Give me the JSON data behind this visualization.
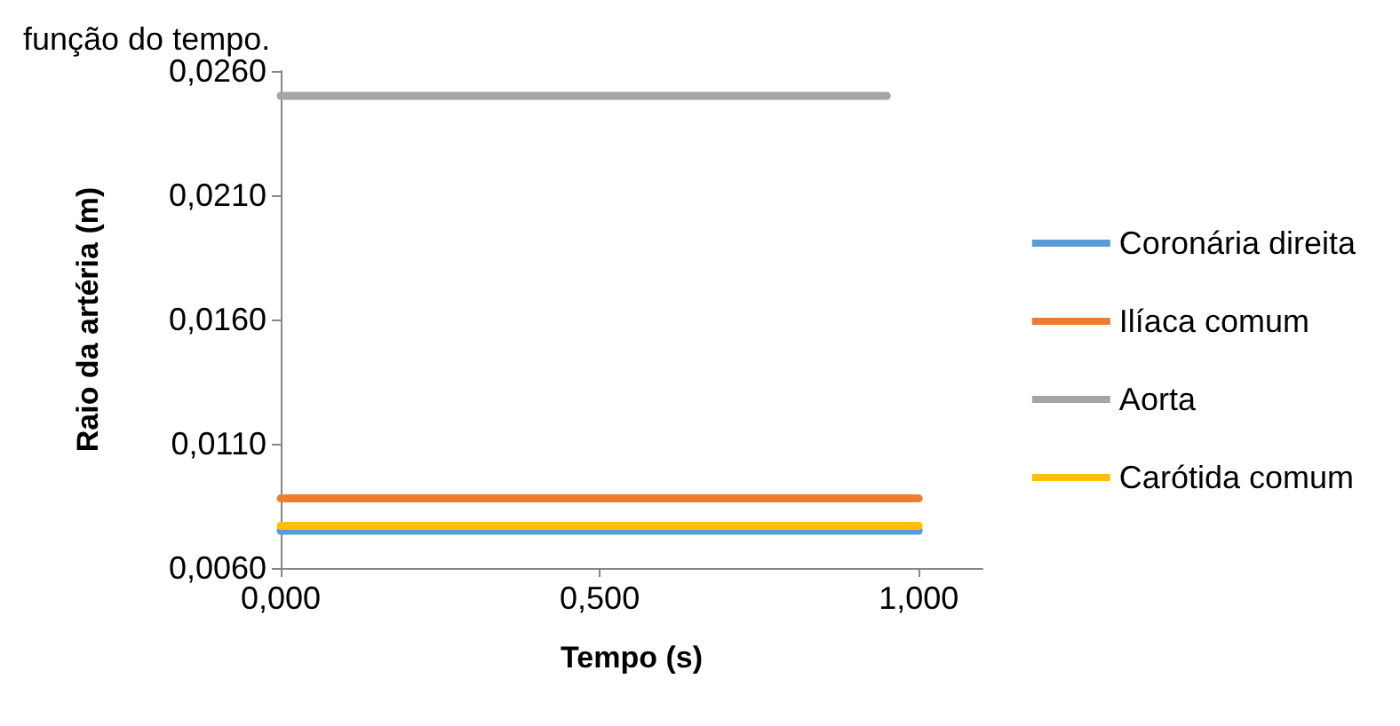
{
  "chart_data": {
    "type": "line",
    "title": "função do tempo.",
    "xlabel": "Tempo (s)",
    "ylabel": "Raio da artéria (m)",
    "xlim": [
      0,
      1.1
    ],
    "xticks": [
      {
        "value": 0,
        "label": "0,000"
      },
      {
        "value": 0.5,
        "label": "0,500"
      },
      {
        "value": 1,
        "label": "1,000"
      }
    ],
    "ylim": [
      0.006,
      0.026
    ],
    "yticks": [
      {
        "value": 0.006,
        "label": "0,0060"
      },
      {
        "value": 0.011,
        "label": "0,0110"
      },
      {
        "value": 0.016,
        "label": "0,0160"
      },
      {
        "value": 0.021,
        "label": "0,0210"
      },
      {
        "value": 0.026,
        "label": "0,0260"
      }
    ],
    "series": [
      {
        "name": "Coronária direita",
        "color": "#5b9bd5",
        "x": [
          0,
          1
        ],
        "values": [
          0.0075,
          0.0075
        ]
      },
      {
        "name": "Ilíaca comum",
        "color": "#ed7d31",
        "x": [
          0,
          1
        ],
        "values": [
          0.0088,
          0.0088
        ]
      },
      {
        "name": "Aorta",
        "color": "#a5a5a5",
        "x": [
          0,
          0.95
        ],
        "values": [
          0.025,
          0.025
        ]
      },
      {
        "name": "Carótida comum",
        "color": "#ffc000",
        "x": [
          0,
          1
        ],
        "values": [
          0.0077,
          0.0077
        ]
      }
    ],
    "grid": false,
    "legend": "right",
    "marker": "none",
    "line_style": "solid"
  }
}
